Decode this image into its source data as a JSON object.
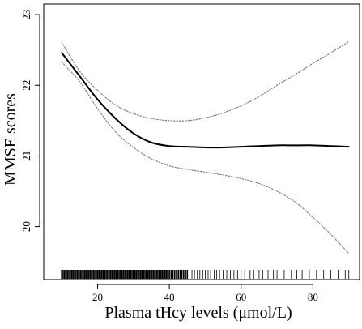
{
  "chart_data": {
    "type": "line",
    "title": "",
    "xlabel": "Plasma tHcy levels (μmol/L)",
    "ylabel": "MMSE scores",
    "xlim": [
      5,
      93
    ],
    "ylim": [
      19.25,
      23.15
    ],
    "xticks": [
      20,
      40,
      60,
      80
    ],
    "yticks": [
      20,
      21,
      22,
      23
    ],
    "grid": false,
    "legend": "none",
    "series": [
      {
        "role": "estimate",
        "style": "solid",
        "color": "#000000",
        "x": [
          10,
          15,
          20,
          25,
          30,
          35,
          40,
          45,
          50,
          55,
          60,
          65,
          70,
          75,
          80,
          85,
          90
        ],
        "y": [
          22.46,
          22.13,
          21.8,
          21.53,
          21.32,
          21.19,
          21.14,
          21.13,
          21.12,
          21.12,
          21.13,
          21.14,
          21.15,
          21.15,
          21.15,
          21.14,
          21.13
        ]
      },
      {
        "role": "upper-95ci",
        "style": "dotted",
        "color": "#808080",
        "x": [
          10,
          15,
          20,
          25,
          30,
          35,
          40,
          45,
          50,
          55,
          60,
          65,
          70,
          75,
          80,
          85,
          90
        ],
        "y": [
          22.61,
          22.2,
          21.93,
          21.72,
          21.6,
          21.53,
          21.5,
          21.5,
          21.54,
          21.61,
          21.71,
          21.84,
          22.0,
          22.15,
          22.31,
          22.46,
          22.62
        ]
      },
      {
        "role": "lower-95ci",
        "style": "dotted",
        "color": "#808080",
        "x": [
          10,
          15,
          20,
          25,
          30,
          35,
          40,
          45,
          50,
          55,
          60,
          65,
          70,
          75,
          80,
          85,
          90
        ],
        "y": [
          22.33,
          22.05,
          21.67,
          21.34,
          21.12,
          20.96,
          20.86,
          20.81,
          20.77,
          20.73,
          20.68,
          20.61,
          20.5,
          20.35,
          20.13,
          19.89,
          19.62
        ]
      }
    ],
    "rug": {
      "dense_range": [
        10,
        45
      ],
      "x": [
        10,
        10.4,
        10.8,
        11.2,
        11.6,
        12,
        12.4,
        12.8,
        13.2,
        13.6,
        14,
        14.4,
        14.8,
        15.2,
        15.6,
        16,
        16.4,
        16.8,
        17.2,
        17.6,
        18,
        18.4,
        18.8,
        19.2,
        19.6,
        20,
        20.4,
        20.8,
        21.2,
        21.6,
        22,
        22.4,
        22.8,
        23.2,
        23.6,
        24,
        24.4,
        24.8,
        25.2,
        25.6,
        26,
        26.4,
        26.8,
        27.2,
        27.6,
        28,
        28.4,
        28.8,
        29.2,
        29.6,
        30,
        30.4,
        30.8,
        31.2,
        31.6,
        32,
        32.4,
        32.8,
        33.2,
        33.6,
        34,
        34.4,
        34.8,
        35.2,
        35.6,
        36,
        36.4,
        36.8,
        37.2,
        37.6,
        38,
        38.4,
        38.8,
        39.2,
        39.6,
        40,
        40.5,
        41,
        41.5,
        42,
        42.5,
        43,
        43.5,
        44,
        44.5,
        45,
        45.7,
        46.3,
        47,
        47.8,
        48.5,
        49.3,
        50,
        50.8,
        51.5,
        52.5,
        53.2,
        54,
        55,
        56,
        57,
        58,
        59,
        60,
        61,
        62.5,
        63.5,
        65,
        66,
        67.5,
        69,
        70,
        72,
        74,
        75.5,
        77,
        79,
        81,
        83,
        85,
        87,
        89,
        90
      ]
    }
  }
}
